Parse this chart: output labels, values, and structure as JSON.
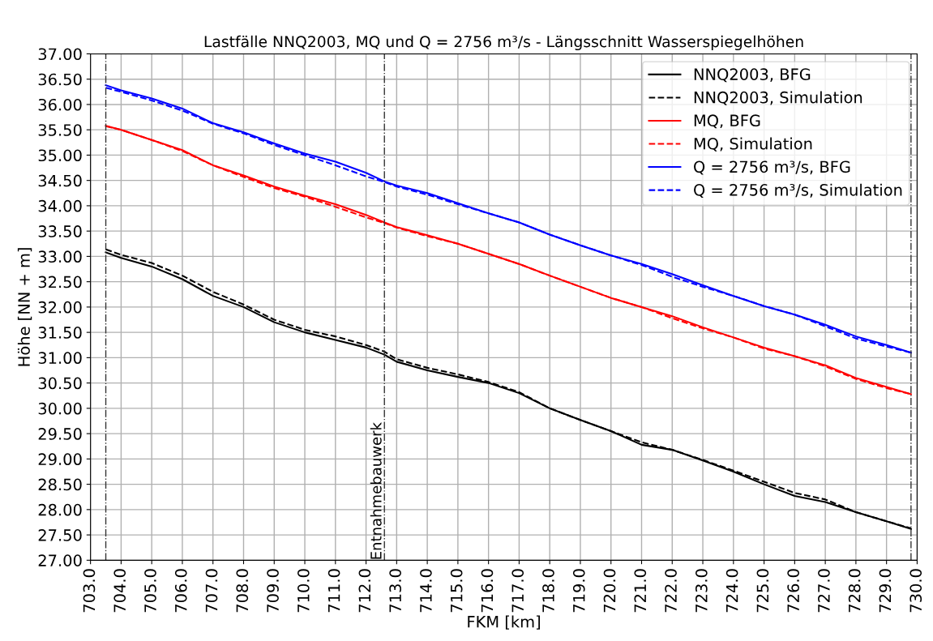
{
  "chart_data": {
    "type": "line",
    "title": "Lastfälle NNQ2003, MQ und Q = 2756 m³/s - Längsschnitt Wasserspiegelhöhen",
    "xlabel": "FKM [km]",
    "ylabel": "Höhe [NN + m]",
    "x": [
      703.5,
      704,
      705,
      706,
      707,
      708,
      709,
      710,
      711,
      712,
      712.6,
      713,
      714,
      715,
      716,
      717,
      718,
      719,
      720,
      721,
      722,
      723,
      724,
      725,
      726,
      727,
      728,
      729,
      729.8
    ],
    "series": [
      {
        "name": "NNQ2003, BFG",
        "color": "#000000",
        "line_style": "solid",
        "values": [
          33.08,
          32.97,
          32.8,
          32.55,
          32.22,
          32.0,
          31.7,
          31.5,
          31.35,
          31.2,
          31.06,
          30.92,
          30.75,
          30.62,
          30.5,
          30.3,
          30.0,
          29.77,
          29.55,
          29.28,
          29.18,
          28.97,
          28.75,
          28.5,
          28.27,
          28.15,
          27.95,
          27.77,
          27.62
        ]
      },
      {
        "name": "NNQ2003, Simulation",
        "color": "#000000",
        "line_style": "dashed",
        "values": [
          33.14,
          33.03,
          32.87,
          32.62,
          32.3,
          32.05,
          31.75,
          31.55,
          31.42,
          31.25,
          31.12,
          30.97,
          30.8,
          30.67,
          30.52,
          30.32,
          30.0,
          29.77,
          29.55,
          29.33,
          29.18,
          28.98,
          28.77,
          28.55,
          28.33,
          28.2,
          27.95,
          27.77,
          27.63
        ]
      },
      {
        "name": "MQ, BFG",
        "color": "#ff0000",
        "line_style": "solid",
        "values": [
          35.58,
          35.5,
          35.3,
          35.1,
          34.8,
          34.6,
          34.38,
          34.2,
          34.03,
          33.82,
          33.67,
          33.58,
          33.42,
          33.25,
          33.05,
          32.85,
          32.62,
          32.4,
          32.18,
          32.0,
          31.82,
          31.6,
          31.4,
          31.2,
          31.03,
          30.85,
          30.6,
          30.42,
          30.28
        ]
      },
      {
        "name": "MQ, Simulation",
        "color": "#ff0000",
        "line_style": "dashed",
        "values": [
          35.57,
          35.5,
          35.3,
          35.08,
          34.8,
          34.57,
          34.35,
          34.18,
          33.98,
          33.77,
          33.66,
          33.57,
          33.4,
          33.25,
          33.05,
          32.85,
          32.62,
          32.4,
          32.18,
          32.0,
          31.78,
          31.58,
          31.4,
          31.18,
          31.03,
          30.83,
          30.58,
          30.4,
          30.28
        ]
      },
      {
        "name": "Q = 2756 m³/s, BFG",
        "color": "#0000ff",
        "line_style": "solid",
        "values": [
          36.38,
          36.28,
          36.12,
          35.92,
          35.63,
          35.45,
          35.23,
          35.03,
          34.87,
          34.65,
          34.48,
          34.4,
          34.25,
          34.05,
          33.85,
          33.67,
          33.43,
          33.22,
          33.02,
          32.85,
          32.65,
          32.43,
          32.22,
          32.02,
          31.85,
          31.65,
          31.42,
          31.25,
          31.1
        ]
      },
      {
        "name": "Q = 2756 m³/s, Simulation",
        "color": "#0000ff",
        "line_style": "dashed",
        "values": [
          36.33,
          36.25,
          36.08,
          35.88,
          35.62,
          35.43,
          35.2,
          35.0,
          34.8,
          34.58,
          34.47,
          34.38,
          34.22,
          34.03,
          33.85,
          33.67,
          33.43,
          33.22,
          33.02,
          32.83,
          32.6,
          32.4,
          32.22,
          32.02,
          31.85,
          31.62,
          31.38,
          31.22,
          31.1
        ]
      }
    ],
    "xlim": [
      703,
      730
    ],
    "ylim": [
      27,
      37
    ],
    "xticks": [
      {
        "value": 703,
        "label": "703.0"
      },
      {
        "value": 704,
        "label": "704.0"
      },
      {
        "value": 705,
        "label": "705.0"
      },
      {
        "value": 706,
        "label": "706.0"
      },
      {
        "value": 707,
        "label": "707.0"
      },
      {
        "value": 708,
        "label": "708.0"
      },
      {
        "value": 709,
        "label": "709.0"
      },
      {
        "value": 710,
        "label": "710.0"
      },
      {
        "value": 711,
        "label": "711.0"
      },
      {
        "value": 712,
        "label": "712.0"
      },
      {
        "value": 713,
        "label": "713.0"
      },
      {
        "value": 714,
        "label": "714.0"
      },
      {
        "value": 715,
        "label": "715.0"
      },
      {
        "value": 716,
        "label": "716.0"
      },
      {
        "value": 717,
        "label": "717.0"
      },
      {
        "value": 718,
        "label": "718.0"
      },
      {
        "value": 719,
        "label": "719.0"
      },
      {
        "value": 720,
        "label": "720.0"
      },
      {
        "value": 721,
        "label": "721.0"
      },
      {
        "value": 722,
        "label": "722.0"
      },
      {
        "value": 723,
        "label": "723.0"
      },
      {
        "value": 724,
        "label": "724.0"
      },
      {
        "value": 725,
        "label": "725.0"
      },
      {
        "value": 726,
        "label": "726.0"
      },
      {
        "value": 727,
        "label": "727.0"
      },
      {
        "value": 728,
        "label": "728.0"
      },
      {
        "value": 729,
        "label": "729.0"
      },
      {
        "value": 730,
        "label": "730.0"
      }
    ],
    "yticks": [
      {
        "value": 27,
        "label": "27.00"
      },
      {
        "value": 27.5,
        "label": "27.50"
      },
      {
        "value": 28,
        "label": "28.00"
      },
      {
        "value": 28.5,
        "label": "28.50"
      },
      {
        "value": 29,
        "label": "29.00"
      },
      {
        "value": 29.5,
        "label": "29.50"
      },
      {
        "value": 30,
        "label": "30.00"
      },
      {
        "value": 30.5,
        "label": "30.50"
      },
      {
        "value": 31,
        "label": "31.00"
      },
      {
        "value": 31.5,
        "label": "31.50"
      },
      {
        "value": 32,
        "label": "32.00"
      },
      {
        "value": 32.5,
        "label": "32.50"
      },
      {
        "value": 33,
        "label": "33.00"
      },
      {
        "value": 33.5,
        "label": "33.50"
      },
      {
        "value": 34,
        "label": "34.00"
      },
      {
        "value": 34.5,
        "label": "34.50"
      },
      {
        "value": 35,
        "label": "35.00"
      },
      {
        "value": 35.5,
        "label": "35.50"
      },
      {
        "value": 36,
        "label": "36.00"
      },
      {
        "value": 36.5,
        "label": "36.50"
      },
      {
        "value": 37,
        "label": "37.00"
      }
    ],
    "ref_lines": [
      {
        "axis": "x",
        "value": 703.5,
        "color": "#333333",
        "line_style": "dashdot"
      },
      {
        "axis": "x",
        "value": 712.6,
        "label": "Entnahmebauwerk",
        "color": "#333333",
        "line_style": "dashdot"
      },
      {
        "axis": "x",
        "value": 729.8,
        "color": "#333333",
        "line_style": "dashdot"
      }
    ],
    "grid": true,
    "legend": "top right",
    "marker": "none"
  }
}
